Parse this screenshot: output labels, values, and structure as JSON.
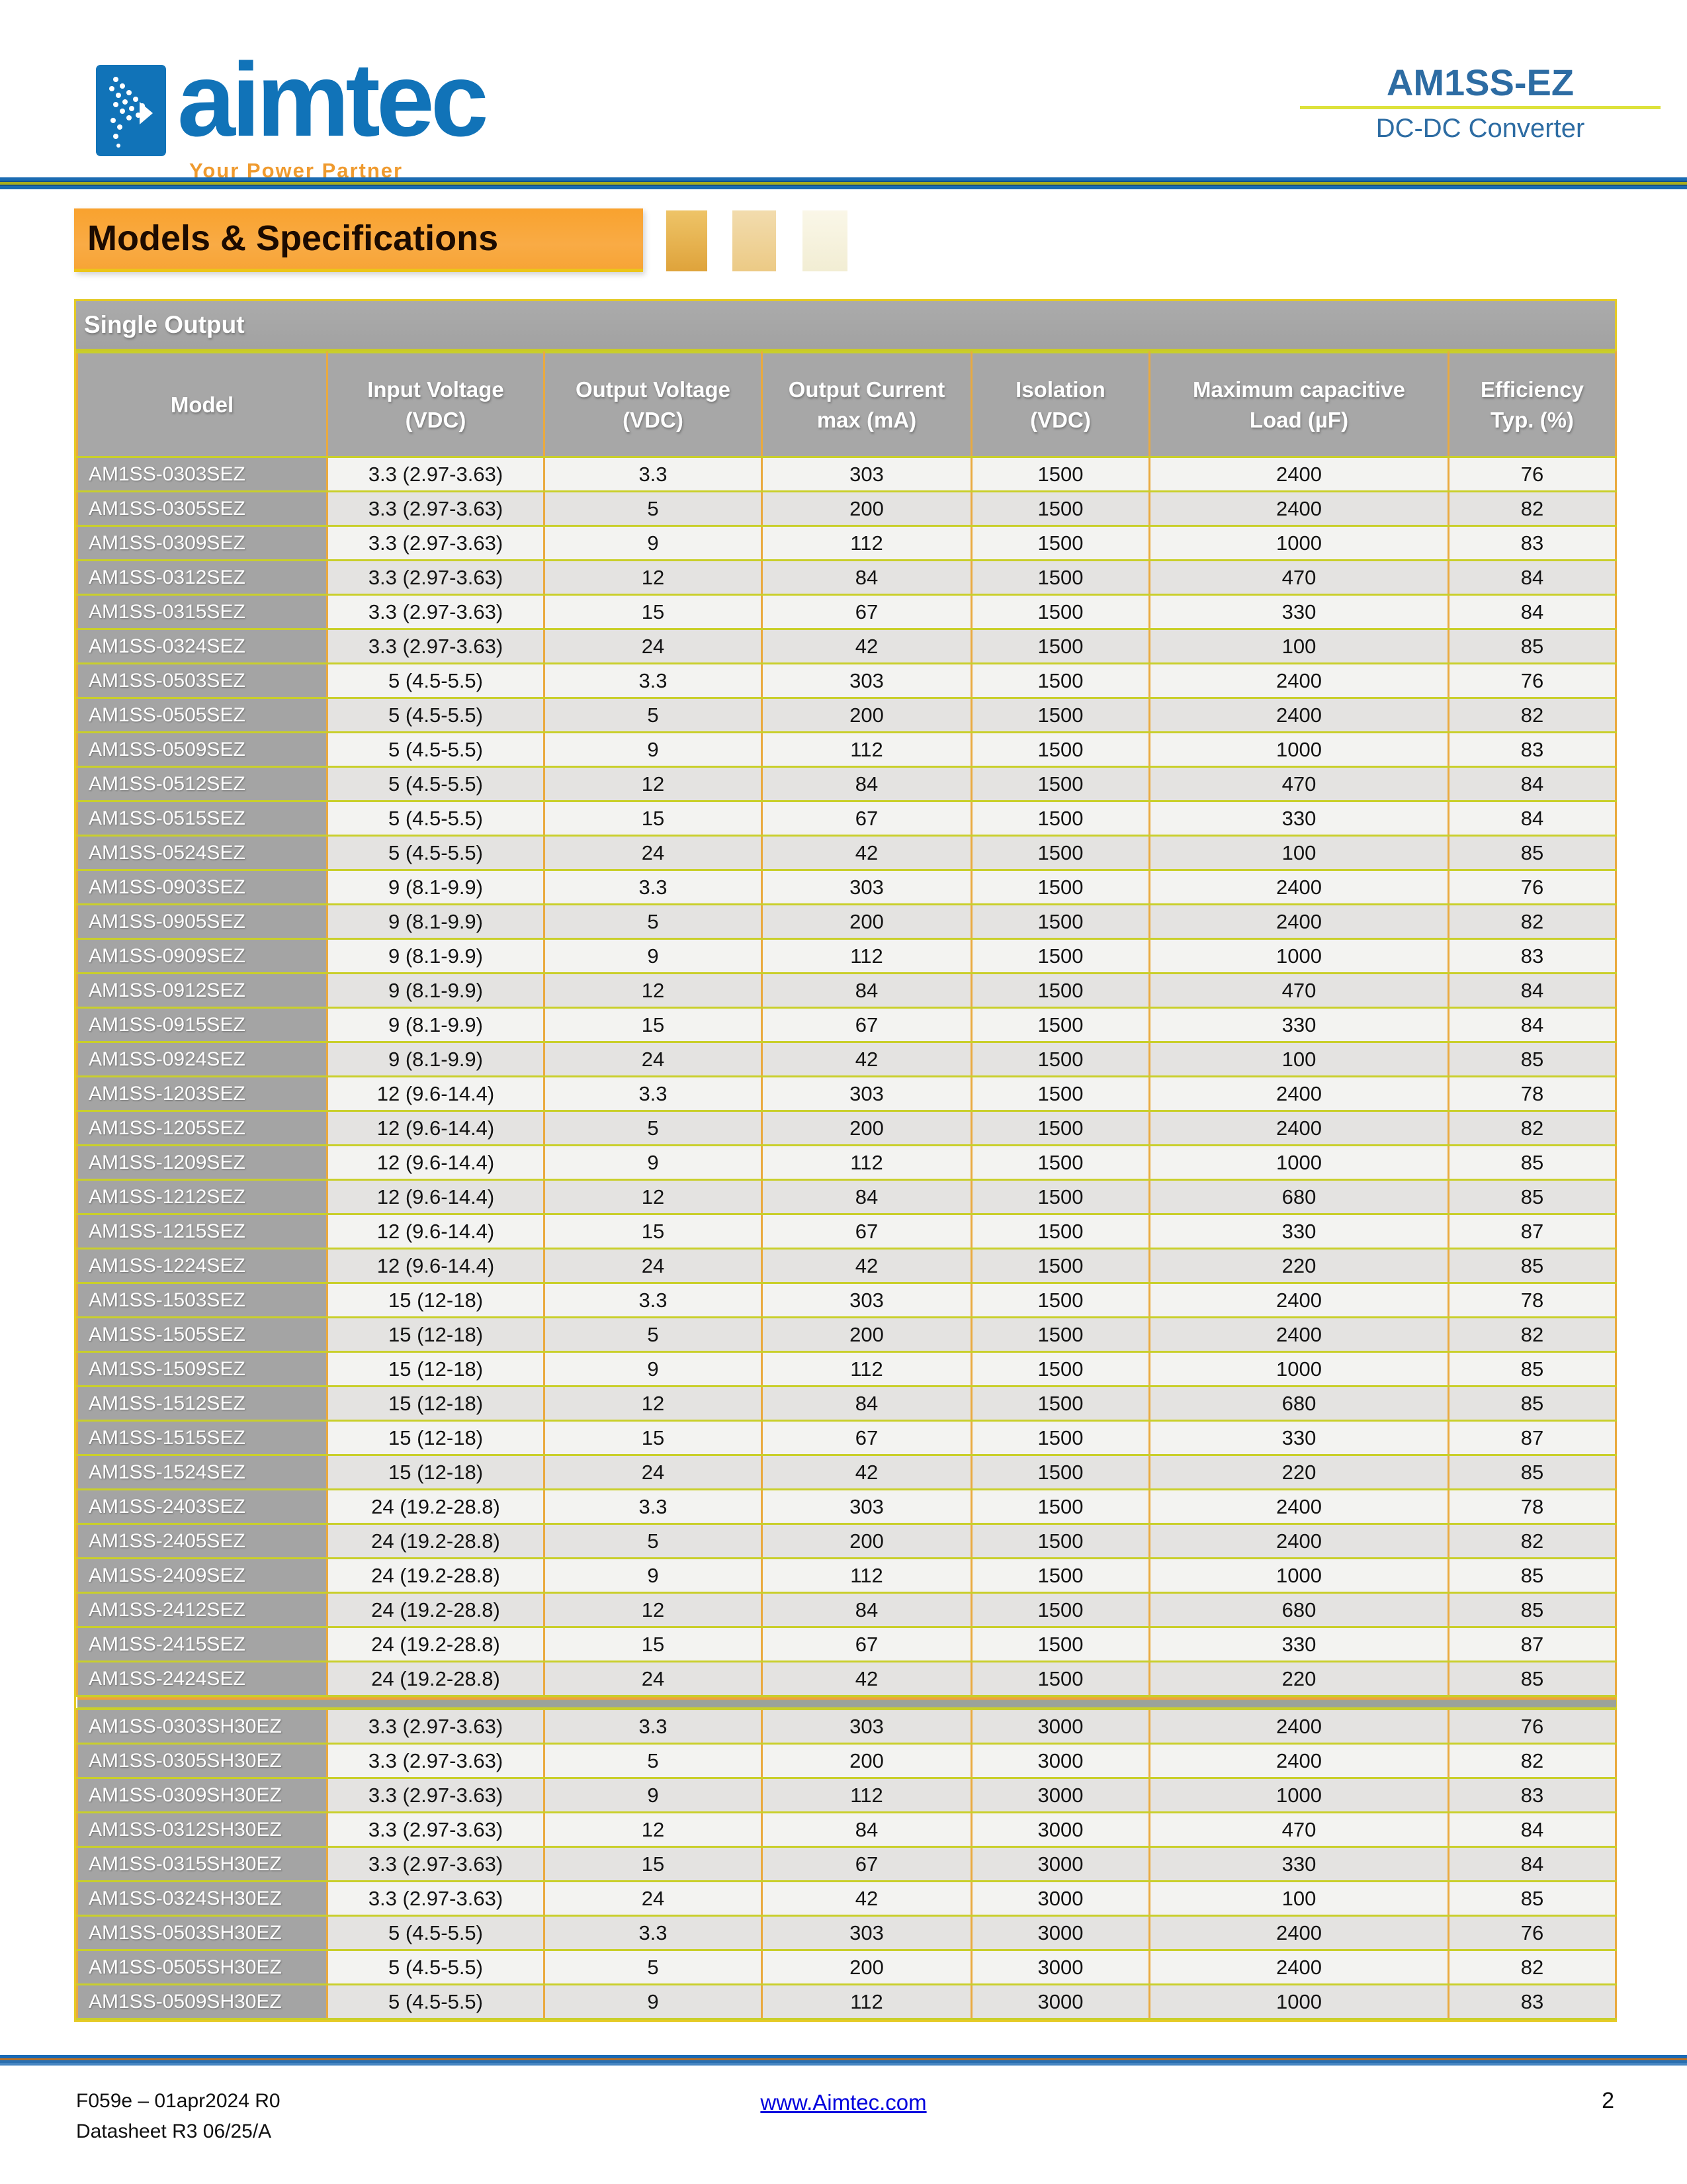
{
  "header": {
    "logo_text": "aimtec",
    "logo_tagline": "Your Power Partner",
    "product": "AM1SS-EZ",
    "product_subtitle": "DC-DC Converter"
  },
  "section": {
    "title": "Models & Specifications"
  },
  "table": {
    "group_title": "Single Output",
    "columns": [
      {
        "label": "Model",
        "sub": ""
      },
      {
        "label": "Input Voltage",
        "sub": "(VDC)"
      },
      {
        "label": "Output Voltage",
        "sub": "(VDC)"
      },
      {
        "label": "Output Current",
        "sub": "max (mA)"
      },
      {
        "label": "Isolation",
        "sub": "(VDC)"
      },
      {
        "label": "Maximum capacitive",
        "sub": "Load (µF)"
      },
      {
        "label": "Efficiency",
        "sub": "Typ. (%)"
      }
    ],
    "rows_sez": [
      [
        "AM1SS-0303SEZ",
        "3.3 (2.97-3.63)",
        "3.3",
        "303",
        "1500",
        "2400",
        "76"
      ],
      [
        "AM1SS-0305SEZ",
        "3.3 (2.97-3.63)",
        "5",
        "200",
        "1500",
        "2400",
        "82"
      ],
      [
        "AM1SS-0309SEZ",
        "3.3 (2.97-3.63)",
        "9",
        "112",
        "1500",
        "1000",
        "83"
      ],
      [
        "AM1SS-0312SEZ",
        "3.3 (2.97-3.63)",
        "12",
        "84",
        "1500",
        "470",
        "84"
      ],
      [
        "AM1SS-0315SEZ",
        "3.3 (2.97-3.63)",
        "15",
        "67",
        "1500",
        "330",
        "84"
      ],
      [
        "AM1SS-0324SEZ",
        "3.3 (2.97-3.63)",
        "24",
        "42",
        "1500",
        "100",
        "85"
      ],
      [
        "AM1SS-0503SEZ",
        "5 (4.5-5.5)",
        "3.3",
        "303",
        "1500",
        "2400",
        "76"
      ],
      [
        "AM1SS-0505SEZ",
        "5 (4.5-5.5)",
        "5",
        "200",
        "1500",
        "2400",
        "82"
      ],
      [
        "AM1SS-0509SEZ",
        "5 (4.5-5.5)",
        "9",
        "112",
        "1500",
        "1000",
        "83"
      ],
      [
        "AM1SS-0512SEZ",
        "5 (4.5-5.5)",
        "12",
        "84",
        "1500",
        "470",
        "84"
      ],
      [
        "AM1SS-0515SEZ",
        "5 (4.5-5.5)",
        "15",
        "67",
        "1500",
        "330",
        "84"
      ],
      [
        "AM1SS-0524SEZ",
        "5 (4.5-5.5)",
        "24",
        "42",
        "1500",
        "100",
        "85"
      ],
      [
        "AM1SS-0903SEZ",
        "9 (8.1-9.9)",
        "3.3",
        "303",
        "1500",
        "2400",
        "76"
      ],
      [
        "AM1SS-0905SEZ",
        "9 (8.1-9.9)",
        "5",
        "200",
        "1500",
        "2400",
        "82"
      ],
      [
        "AM1SS-0909SEZ",
        "9 (8.1-9.9)",
        "9",
        "112",
        "1500",
        "1000",
        "83"
      ],
      [
        "AM1SS-0912SEZ",
        "9 (8.1-9.9)",
        "12",
        "84",
        "1500",
        "470",
        "84"
      ],
      [
        "AM1SS-0915SEZ",
        "9 (8.1-9.9)",
        "15",
        "67",
        "1500",
        "330",
        "84"
      ],
      [
        "AM1SS-0924SEZ",
        "9 (8.1-9.9)",
        "24",
        "42",
        "1500",
        "100",
        "85"
      ],
      [
        "AM1SS-1203SEZ",
        "12 (9.6-14.4)",
        "3.3",
        "303",
        "1500",
        "2400",
        "78"
      ],
      [
        "AM1SS-1205SEZ",
        "12 (9.6-14.4)",
        "5",
        "200",
        "1500",
        "2400",
        "82"
      ],
      [
        "AM1SS-1209SEZ",
        "12 (9.6-14.4)",
        "9",
        "112",
        "1500",
        "1000",
        "85"
      ],
      [
        "AM1SS-1212SEZ",
        "12 (9.6-14.4)",
        "12",
        "84",
        "1500",
        "680",
        "85"
      ],
      [
        "AM1SS-1215SEZ",
        "12 (9.6-14.4)",
        "15",
        "67",
        "1500",
        "330",
        "87"
      ],
      [
        "AM1SS-1224SEZ",
        "12 (9.6-14.4)",
        "24",
        "42",
        "1500",
        "220",
        "85"
      ],
      [
        "AM1SS-1503SEZ",
        "15 (12-18)",
        "3.3",
        "303",
        "1500",
        "2400",
        "78"
      ],
      [
        "AM1SS-1505SEZ",
        "15 (12-18)",
        "5",
        "200",
        "1500",
        "2400",
        "82"
      ],
      [
        "AM1SS-1509SEZ",
        "15 (12-18)",
        "9",
        "112",
        "1500",
        "1000",
        "85"
      ],
      [
        "AM1SS-1512SEZ",
        "15 (12-18)",
        "12",
        "84",
        "1500",
        "680",
        "85"
      ],
      [
        "AM1SS-1515SEZ",
        "15 (12-18)",
        "15",
        "67",
        "1500",
        "330",
        "87"
      ],
      [
        "AM1SS-1524SEZ",
        "15 (12-18)",
        "24",
        "42",
        "1500",
        "220",
        "85"
      ],
      [
        "AM1SS-2403SEZ",
        "24 (19.2-28.8)",
        "3.3",
        "303",
        "1500",
        "2400",
        "78"
      ],
      [
        "AM1SS-2405SEZ",
        "24 (19.2-28.8)",
        "5",
        "200",
        "1500",
        "2400",
        "82"
      ],
      [
        "AM1SS-2409SEZ",
        "24 (19.2-28.8)",
        "9",
        "112",
        "1500",
        "1000",
        "85"
      ],
      [
        "AM1SS-2412SEZ",
        "24 (19.2-28.8)",
        "12",
        "84",
        "1500",
        "680",
        "85"
      ],
      [
        "AM1SS-2415SEZ",
        "24 (19.2-28.8)",
        "15",
        "67",
        "1500",
        "330",
        "87"
      ],
      [
        "AM1SS-2424SEZ",
        "24 (19.2-28.8)",
        "24",
        "42",
        "1500",
        "220",
        "85"
      ]
    ],
    "rows_sh30": [
      [
        "AM1SS-0303SH30EZ",
        "3.3 (2.97-3.63)",
        "3.3",
        "303",
        "3000",
        "2400",
        "76"
      ],
      [
        "AM1SS-0305SH30EZ",
        "3.3 (2.97-3.63)",
        "5",
        "200",
        "3000",
        "2400",
        "82"
      ],
      [
        "AM1SS-0309SH30EZ",
        "3.3 (2.97-3.63)",
        "9",
        "112",
        "3000",
        "1000",
        "83"
      ],
      [
        "AM1SS-0312SH30EZ",
        "3.3 (2.97-3.63)",
        "12",
        "84",
        "3000",
        "470",
        "84"
      ],
      [
        "AM1SS-0315SH30EZ",
        "3.3 (2.97-3.63)",
        "15",
        "67",
        "3000",
        "330",
        "84"
      ],
      [
        "AM1SS-0324SH30EZ",
        "3.3 (2.97-3.63)",
        "24",
        "42",
        "3000",
        "100",
        "85"
      ],
      [
        "AM1SS-0503SH30EZ",
        "5 (4.5-5.5)",
        "3.3",
        "303",
        "3000",
        "2400",
        "76"
      ],
      [
        "AM1SS-0505SH30EZ",
        "5 (4.5-5.5)",
        "5",
        "200",
        "3000",
        "2400",
        "82"
      ],
      [
        "AM1SS-0509SH30EZ",
        "5 (4.5-5.5)",
        "9",
        "112",
        "3000",
        "1000",
        "83"
      ]
    ]
  },
  "footer": {
    "doc_ref_line1": "F059e – 01apr2024 R0",
    "doc_ref_line2": "Datasheet R3 06/25/A",
    "website": "www.Aimtec.com",
    "page_number": "2"
  },
  "colors": {
    "brand_blue": "#1173b8",
    "tagline_orange": "#ef9a2e",
    "product_blue": "#2d6ca3",
    "banner_orange": "#f9a436",
    "underline_yellow_green": "#dde23c",
    "table_header_gray": "#a7a7a7",
    "row_light": "#f3f3f1",
    "row_dark": "#e4e3e1",
    "border_olive": "#c9cf2b",
    "border_orange": "#eaaa3f",
    "divider_blue": "#1a6bb2",
    "link_blue": "#0000dd"
  }
}
